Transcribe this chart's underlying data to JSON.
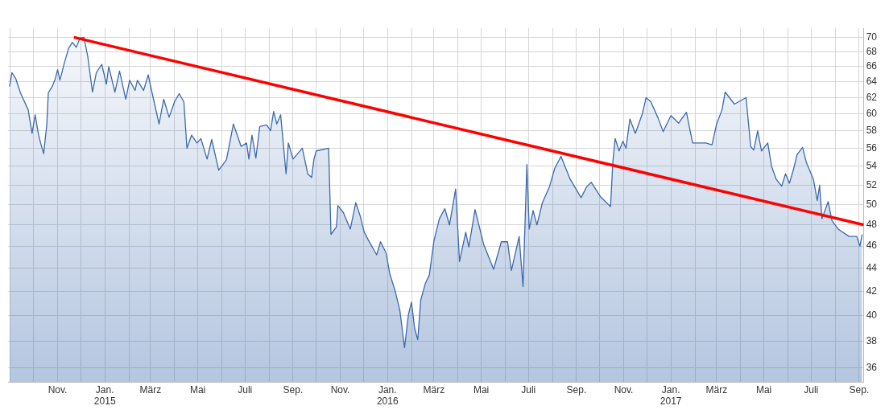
{
  "chart_data": {
    "type": "area",
    "log": true,
    "grid": true,
    "legend": false,
    "xlim": [
      "2014-08-29",
      "2017-09-07"
    ],
    "ylim": [
      35,
      71.3
    ],
    "yticks": [
      36,
      38,
      40,
      42,
      44,
      46,
      48,
      50,
      52,
      54,
      56,
      58,
      60,
      62,
      64,
      66,
      68,
      70
    ],
    "xticks": [
      {
        "value": "2014-09",
        "label": null
      },
      {
        "value": "2014-10",
        "label": null
      },
      {
        "value": "2014-11",
        "label": "Nov."
      },
      {
        "value": "2014-12",
        "label": null
      },
      {
        "value": "2015-01",
        "label": "Jan.\n2015"
      },
      {
        "value": "2015-02",
        "label": null
      },
      {
        "value": "2015-03",
        "label": "März"
      },
      {
        "value": "2015-04",
        "label": null
      },
      {
        "value": "2015-05",
        "label": "Mai"
      },
      {
        "value": "2015-06",
        "label": null
      },
      {
        "value": "2015-07",
        "label": "Juli"
      },
      {
        "value": "2015-08",
        "label": null
      },
      {
        "value": "2015-09",
        "label": "Sep."
      },
      {
        "value": "2015-10",
        "label": null
      },
      {
        "value": "2015-11",
        "label": "Nov."
      },
      {
        "value": "2015-12",
        "label": null
      },
      {
        "value": "2016-01",
        "label": "Jan.\n2016"
      },
      {
        "value": "2016-02",
        "label": null
      },
      {
        "value": "2016-03",
        "label": "März"
      },
      {
        "value": "2016-04",
        "label": null
      },
      {
        "value": "2016-05",
        "label": "Mai"
      },
      {
        "value": "2016-06",
        "label": null
      },
      {
        "value": "2016-07",
        "label": "Juli"
      },
      {
        "value": "2016-08",
        "label": null
      },
      {
        "value": "2016-09",
        "label": "Sep."
      },
      {
        "value": "2016-10",
        "label": null
      },
      {
        "value": "2016-11",
        "label": "Nov."
      },
      {
        "value": "2016-12",
        "label": null
      },
      {
        "value": "2017-01",
        "label": "Jan.\n2017"
      },
      {
        "value": "2017-02",
        "label": null
      },
      {
        "value": "2017-03",
        "label": "März"
      },
      {
        "value": "2017-04",
        "label": null
      },
      {
        "value": "2017-05",
        "label": "Mai"
      },
      {
        "value": "2017-06",
        "label": null
      },
      {
        "value": "2017-07",
        "label": "Juli"
      },
      {
        "value": "2017-08",
        "label": null
      },
      {
        "value": "2017-09",
        "label": "Sep."
      }
    ],
    "series": [
      {
        "color": "#3a69ad",
        "x": [
          "2014-08-31",
          "2014-09-03",
          "2014-09-08",
          "2014-09-14",
          "2014-09-24",
          "2014-09-29",
          "2014-10-03",
          "2014-10-07",
          "2014-10-10",
          "2014-10-14",
          "2014-10-18",
          "2014-10-20",
          "2014-10-25",
          "2014-10-29",
          "2014-11-01",
          "2014-11-04",
          "2014-11-09",
          "2014-11-15",
          "2014-11-20",
          "2014-11-25",
          "2014-11-30",
          "2014-12-05",
          "2014-12-10",
          "2014-12-16",
          "2014-12-21",
          "2014-12-28",
          "2015-01-03",
          "2015-01-06",
          "2015-01-14",
          "2015-01-20",
          "2015-01-28",
          "2015-02-02",
          "2015-02-09",
          "2015-02-12",
          "2015-02-20",
          "2015-02-26",
          "2015-03-03",
          "2015-03-12",
          "2015-03-18",
          "2015-03-25",
          "2015-04-01",
          "2015-04-07",
          "2015-04-13",
          "2015-04-17",
          "2015-04-23",
          "2015-04-30",
          "2015-05-05",
          "2015-05-13",
          "2015-05-19",
          "2015-05-28",
          "2015-06-07",
          "2015-06-16",
          "2015-06-26",
          "2015-07-03",
          "2015-07-06",
          "2015-07-10",
          "2015-07-15",
          "2015-07-20",
          "2015-07-29",
          "2015-08-03",
          "2015-08-07",
          "2015-08-11",
          "2015-08-16",
          "2015-08-23",
          "2015-08-26",
          "2015-09-01",
          "2015-09-13",
          "2015-09-20",
          "2015-09-25",
          "2015-09-28",
          "2015-10-01",
          "2015-10-17",
          "2015-10-20",
          "2015-10-27",
          "2015-10-29",
          "2015-11-05",
          "2015-11-14",
          "2015-11-21",
          "2015-11-27",
          "2015-12-02",
          "2015-12-07",
          "2015-12-18",
          "2015-12-23",
          "2015-12-30",
          "2016-01-04",
          "2016-01-11",
          "2016-01-17",
          "2016-01-23",
          "2016-01-28",
          "2016-02-01",
          "2016-02-05",
          "2016-02-09",
          "2016-02-13",
          "2016-02-19",
          "2016-02-24",
          "2016-03-01",
          "2016-03-08",
          "2016-03-15",
          "2016-03-21",
          "2016-03-29",
          "2016-04-03",
          "2016-04-11",
          "2016-04-15",
          "2016-04-23",
          "2016-04-28",
          "2016-05-04",
          "2016-05-17",
          "2016-05-27",
          "2016-06-04",
          "2016-06-09",
          "2016-06-19",
          "2016-06-24",
          "2016-06-29",
          "2016-07-02",
          "2016-07-07",
          "2016-07-12",
          "2016-07-19",
          "2016-07-28",
          "2016-08-04",
          "2016-08-12",
          "2016-08-24",
          "2016-09-07",
          "2016-09-14",
          "2016-09-20",
          "2016-10-02",
          "2016-10-15",
          "2016-10-18",
          "2016-10-21",
          "2016-10-26",
          "2016-10-31",
          "2016-11-04",
          "2016-11-09",
          "2016-11-16",
          "2016-11-25",
          "2016-11-30",
          "2016-12-06",
          "2016-12-15",
          "2016-12-22",
          "2017-01-01",
          "2017-01-11",
          "2017-01-21",
          "2017-01-29",
          "2017-02-15",
          "2017-02-23",
          "2017-03-01",
          "2017-03-08",
          "2017-03-12",
          "2017-03-24",
          "2017-04-08",
          "2017-04-14",
          "2017-04-18",
          "2017-04-23",
          "2017-04-28",
          "2017-05-06",
          "2017-05-11",
          "2017-05-17",
          "2017-05-24",
          "2017-05-29",
          "2017-06-03",
          "2017-06-08",
          "2017-06-13",
          "2017-06-20",
          "2017-06-25",
          "2017-07-04",
          "2017-07-09",
          "2017-07-12",
          "2017-07-15",
          "2017-07-23",
          "2017-07-28",
          "2017-08-05",
          "2017-08-19",
          "2017-08-29",
          "2017-09-02",
          "2017-09-05"
        ],
        "values": [
          63.4,
          65.2,
          64.4,
          62.6,
          60.5,
          57.7,
          59.9,
          57.7,
          56.6,
          55.4,
          58.7,
          62.6,
          63.4,
          64.4,
          65.6,
          64.2,
          66.2,
          68.4,
          69.3,
          68.6,
          69.9,
          70.0,
          67.3,
          62.7,
          65.2,
          66.3,
          63.7,
          66.0,
          62.7,
          65.4,
          61.8,
          64.2,
          62.9,
          64.2,
          62.9,
          64.9,
          62.6,
          58.8,
          61.8,
          59.6,
          61.5,
          62.5,
          61.5,
          56.0,
          57.5,
          56.6,
          57.1,
          54.8,
          57.0,
          53.6,
          54.7,
          58.8,
          56.2,
          56.6,
          54.8,
          57.5,
          54.9,
          58.5,
          58.7,
          58.0,
          60.3,
          58.8,
          59.9,
          53.2,
          56.6,
          54.8,
          56.0,
          53.2,
          52.8,
          54.8,
          55.7,
          56.0,
          47.1,
          47.8,
          49.9,
          49.2,
          47.6,
          50.2,
          48.8,
          47.3,
          46.6,
          45.2,
          46.4,
          45.4,
          43.5,
          42.0,
          40.4,
          37.5,
          40.1,
          41.1,
          39.0,
          38.1,
          41.3,
          42.7,
          43.4,
          46.5,
          48.6,
          49.6,
          48.0,
          51.6,
          44.6,
          47.3,
          45.9,
          49.5,
          48.0,
          46.2,
          43.9,
          46.4,
          46.4,
          43.8,
          46.9,
          42.4,
          54.2,
          47.6,
          49.4,
          48.0,
          50.2,
          51.8,
          53.8,
          55.1,
          52.6,
          50.7,
          51.8,
          52.3,
          50.8,
          49.8,
          54.5,
          57.1,
          55.7,
          56.8,
          56.0,
          59.4,
          57.7,
          60.0,
          62.0,
          61.5,
          59.6,
          57.9,
          59.8,
          58.9,
          60.2,
          56.6,
          56.6,
          56.4,
          58.8,
          60.5,
          62.7,
          61.2,
          62.0,
          56.2,
          55.8,
          58.0,
          55.7,
          56.6,
          54.0,
          52.6,
          51.9,
          53.2,
          52.2,
          53.6,
          55.3,
          56.1,
          54.4,
          52.6,
          50.4,
          52.0,
          48.6,
          50.3,
          48.4,
          47.6,
          46.9,
          46.9,
          46.0,
          47.1
        ]
      },
      {
        "type": "line",
        "color": "#ff0000",
        "x": [
          "2014-11-22",
          "2017-09-07"
        ],
        "values": [
          70,
          48
        ]
      }
    ]
  }
}
